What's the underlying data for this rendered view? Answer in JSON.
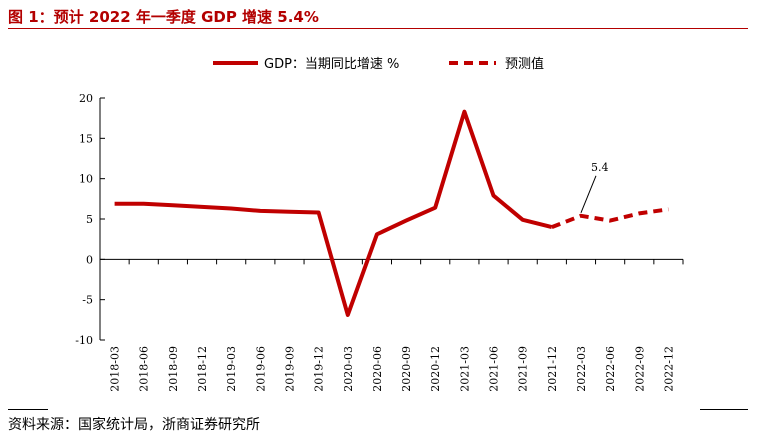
{
  "title": "图 1：预计 2022 年一季度 GDP 增速 5.4%",
  "source": "资料来源：国家统计局，浙商证券研究所",
  "colors": {
    "accent": "#c00000"
  },
  "chart_data": {
    "type": "line",
    "categories": [
      "2018-03",
      "2018-06",
      "2018-09",
      "2018-12",
      "2019-03",
      "2019-06",
      "2019-09",
      "2019-12",
      "2020-03",
      "2020-06",
      "2020-09",
      "2020-12",
      "2021-03",
      "2021-06",
      "2021-09",
      "2021-12",
      "2022-03",
      "2022-06",
      "2022-09",
      "2022-12"
    ],
    "series": [
      {
        "name": "GDP：当期同比增速 %",
        "style": "solid",
        "values": [
          6.9,
          6.9,
          6.7,
          6.5,
          6.3,
          6.0,
          5.9,
          5.8,
          -6.9,
          3.1,
          4.8,
          6.4,
          18.3,
          7.9,
          4.9,
          4.0,
          null,
          null,
          null,
          null
        ]
      },
      {
        "name": "预测值",
        "style": "dashed",
        "values": [
          null,
          null,
          null,
          null,
          null,
          null,
          null,
          null,
          null,
          null,
          null,
          null,
          null,
          null,
          null,
          4.0,
          5.4,
          4.8,
          5.7,
          6.2
        ]
      }
    ],
    "annotation": {
      "text": "5.4",
      "category": "2022-03",
      "value": 5.4
    },
    "ylim": [
      -10,
      20
    ],
    "yticks": [
      "-10",
      "-5",
      "0",
      "5",
      "10",
      "15",
      "20"
    ],
    "ytick_values": [
      -10,
      -5,
      0,
      5,
      10,
      15,
      20
    ],
    "legend_position": "top-center",
    "grid": false
  }
}
